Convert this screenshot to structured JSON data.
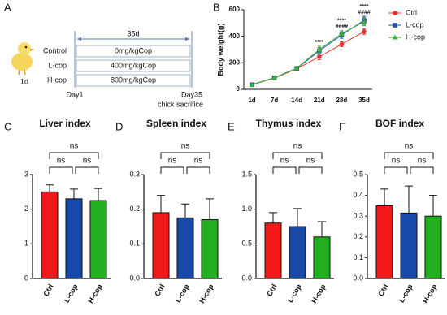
{
  "panel_a": {
    "panel": "A",
    "period": "35d",
    "start_age": "1d",
    "start": "Day1",
    "end": "Day35",
    "end_note": "chick sacrifice",
    "groups": [
      {
        "name": "Control",
        "dose": "0mg/kgCop"
      },
      {
        "name": "L-cop",
        "dose": "400mg/kgCop"
      },
      {
        "name": "H-cop",
        "dose": "800mg/kgCop"
      }
    ]
  },
  "chart_data": [
    {
      "type": "line",
      "panel": "B",
      "y_label": "Body weight(g)",
      "categories": [
        "1d",
        "7d",
        "14d",
        "21d",
        "28d",
        "35d"
      ],
      "ylim": [
        0,
        600
      ],
      "yticks": [
        0,
        200,
        400,
        600
      ],
      "series": [
        {
          "name": "Ctrl",
          "color": "#e8302a",
          "marker": "circle",
          "values": [
            35,
            85,
            155,
            245,
            340,
            435
          ],
          "errors": [
            3,
            5,
            8,
            22,
            18,
            20
          ]
        },
        {
          "name": "L-cop",
          "color": "#1f4fa8",
          "marker": "square",
          "values": [
            35,
            87,
            158,
            290,
            410,
            520
          ],
          "errors": [
            3,
            5,
            8,
            25,
            25,
            30
          ]
        },
        {
          "name": "H-cop",
          "color": "#3cb034",
          "marker": "triangle",
          "values": [
            35,
            88,
            160,
            300,
            420,
            510
          ],
          "errors": [
            3,
            5,
            8,
            25,
            22,
            30
          ]
        }
      ],
      "annotations": [
        null,
        null,
        null,
        [
          "****"
        ],
        [
          "****",
          "####"
        ],
        [
          "****",
          "####"
        ]
      ]
    },
    {
      "type": "bar",
      "panel": "C",
      "title": "Liver index",
      "categories": [
        "Ctrl",
        "L-cop",
        "H-cop"
      ],
      "colors": [
        "#f01818",
        "#1848a8",
        "#22b020"
      ],
      "values": [
        2.5,
        2.3,
        2.25
      ],
      "errors": [
        0.2,
        0.28,
        0.35
      ],
      "ylim": [
        0,
        3
      ],
      "yticks": [
        0,
        1,
        2,
        3
      ],
      "brackets": [
        "ns",
        "ns",
        "ns"
      ]
    },
    {
      "type": "bar",
      "panel": "D",
      "title": "Spleen index",
      "categories": [
        "Ctrl",
        "L-cop",
        "H-cop"
      ],
      "colors": [
        "#f01818",
        "#1848a8",
        "#22b020"
      ],
      "values": [
        0.19,
        0.175,
        0.17
      ],
      "errors": [
        0.05,
        0.04,
        0.06
      ],
      "ylim": [
        0,
        0.3
      ],
      "yticks": [
        {
          "value": 0,
          "label": "0.0"
        },
        0.1,
        0.2,
        0.3
      ],
      "brackets": [
        "ns",
        "ns",
        "ns"
      ]
    },
    {
      "type": "bar",
      "panel": "E",
      "title": "Thymus index",
      "categories": [
        "Ctrl",
        "L-cop",
        "H-cop"
      ],
      "colors": [
        "#f01818",
        "#1848a8",
        "#22b020"
      ],
      "values": [
        0.8,
        0.75,
        0.6
      ],
      "errors": [
        0.15,
        0.26,
        0.22
      ],
      "ylim": [
        0,
        1.5
      ],
      "yticks": [
        {
          "value": 0,
          "label": "0.0"
        },
        0.5,
        {
          "value": 1,
          "label": "1.0"
        },
        1.5
      ],
      "brackets": [
        "ns",
        "ns",
        "ns"
      ]
    },
    {
      "type": "bar",
      "panel": "F",
      "title": "BOF index",
      "categories": [
        "Ctrl",
        "L-cop",
        "H-cop"
      ],
      "colors": [
        "#f01818",
        "#1848a8",
        "#22b020"
      ],
      "values": [
        0.35,
        0.315,
        0.3
      ],
      "errors": [
        0.08,
        0.13,
        0.1
      ],
      "ylim": [
        0,
        0.5
      ],
      "yticks": [
        {
          "value": 0,
          "label": "0.0"
        },
        0.1,
        0.2,
        0.3,
        0.4,
        0.5
      ],
      "brackets": [
        "ns",
        "ns",
        "ns"
      ]
    }
  ]
}
